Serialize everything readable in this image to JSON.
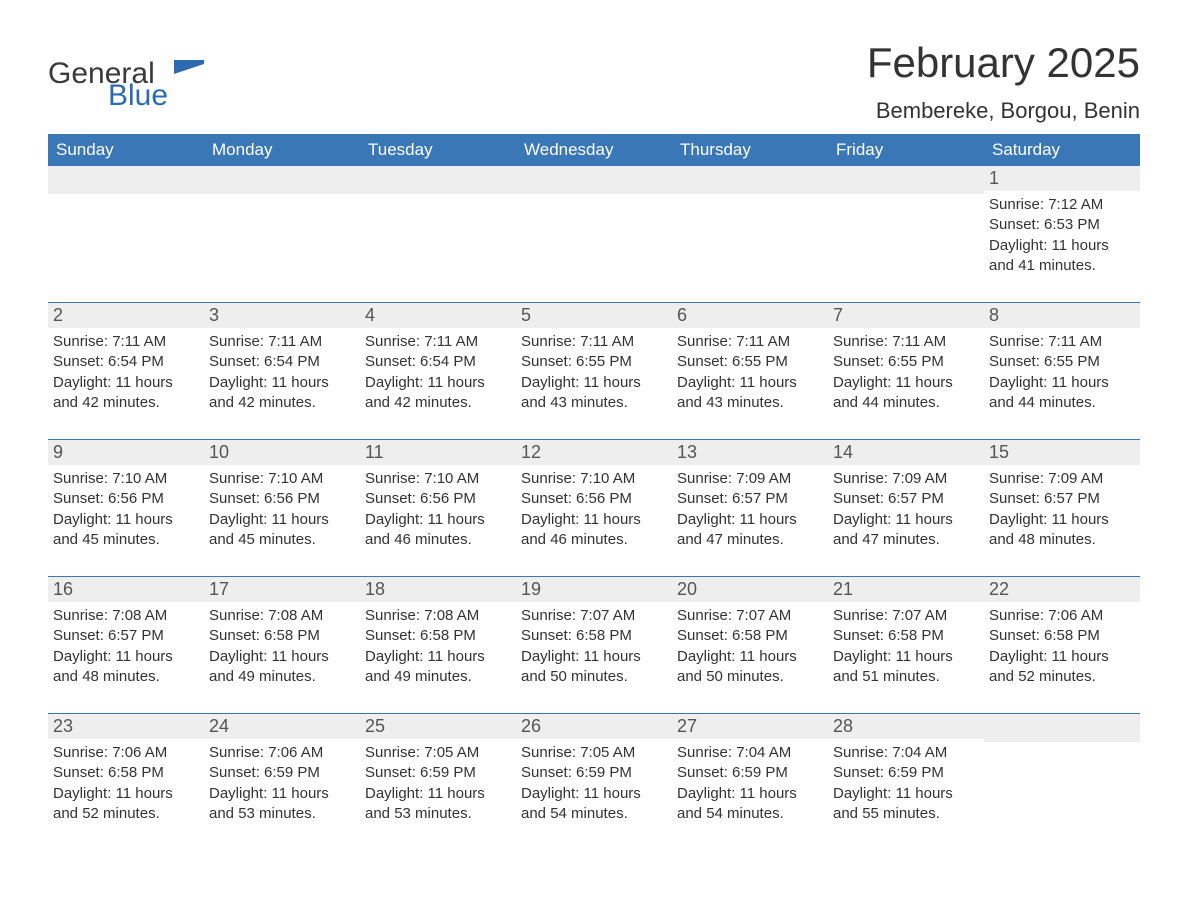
{
  "brand": {
    "general": "General",
    "blue": "Blue",
    "flag_color": "#2d6bb0",
    "text_dark": "#3a3a3a"
  },
  "header": {
    "title": "February 2025",
    "location": "Bembereke, Borgou, Benin"
  },
  "colors": {
    "header_bg": "#3a77b7",
    "header_text": "#ffffff",
    "daynum_bg": "#eeeeee",
    "body_text": "#333333",
    "week_border": "#3a77b7",
    "page_bg": "#ffffff"
  },
  "weekdays": [
    "Sunday",
    "Monday",
    "Tuesday",
    "Wednesday",
    "Thursday",
    "Friday",
    "Saturday"
  ],
  "weeks": [
    [
      {
        "empty": true
      },
      {
        "empty": true
      },
      {
        "empty": true
      },
      {
        "empty": true
      },
      {
        "empty": true
      },
      {
        "empty": true
      },
      {
        "day": "1",
        "sunrise": "Sunrise: 7:12 AM",
        "sunset": "Sunset: 6:53 PM",
        "daylight": "Daylight: 11 hours and 41 minutes."
      }
    ],
    [
      {
        "day": "2",
        "sunrise": "Sunrise: 7:11 AM",
        "sunset": "Sunset: 6:54 PM",
        "daylight": "Daylight: 11 hours and 42 minutes."
      },
      {
        "day": "3",
        "sunrise": "Sunrise: 7:11 AM",
        "sunset": "Sunset: 6:54 PM",
        "daylight": "Daylight: 11 hours and 42 minutes."
      },
      {
        "day": "4",
        "sunrise": "Sunrise: 7:11 AM",
        "sunset": "Sunset: 6:54 PM",
        "daylight": "Daylight: 11 hours and 42 minutes."
      },
      {
        "day": "5",
        "sunrise": "Sunrise: 7:11 AM",
        "sunset": "Sunset: 6:55 PM",
        "daylight": "Daylight: 11 hours and 43 minutes."
      },
      {
        "day": "6",
        "sunrise": "Sunrise: 7:11 AM",
        "sunset": "Sunset: 6:55 PM",
        "daylight": "Daylight: 11 hours and 43 minutes."
      },
      {
        "day": "7",
        "sunrise": "Sunrise: 7:11 AM",
        "sunset": "Sunset: 6:55 PM",
        "daylight": "Daylight: 11 hours and 44 minutes."
      },
      {
        "day": "8",
        "sunrise": "Sunrise: 7:11 AM",
        "sunset": "Sunset: 6:55 PM",
        "daylight": "Daylight: 11 hours and 44 minutes."
      }
    ],
    [
      {
        "day": "9",
        "sunrise": "Sunrise: 7:10 AM",
        "sunset": "Sunset: 6:56 PM",
        "daylight": "Daylight: 11 hours and 45 minutes."
      },
      {
        "day": "10",
        "sunrise": "Sunrise: 7:10 AM",
        "sunset": "Sunset: 6:56 PM",
        "daylight": "Daylight: 11 hours and 45 minutes."
      },
      {
        "day": "11",
        "sunrise": "Sunrise: 7:10 AM",
        "sunset": "Sunset: 6:56 PM",
        "daylight": "Daylight: 11 hours and 46 minutes."
      },
      {
        "day": "12",
        "sunrise": "Sunrise: 7:10 AM",
        "sunset": "Sunset: 6:56 PM",
        "daylight": "Daylight: 11 hours and 46 minutes."
      },
      {
        "day": "13",
        "sunrise": "Sunrise: 7:09 AM",
        "sunset": "Sunset: 6:57 PM",
        "daylight": "Daylight: 11 hours and 47 minutes."
      },
      {
        "day": "14",
        "sunrise": "Sunrise: 7:09 AM",
        "sunset": "Sunset: 6:57 PM",
        "daylight": "Daylight: 11 hours and 47 minutes."
      },
      {
        "day": "15",
        "sunrise": "Sunrise: 7:09 AM",
        "sunset": "Sunset: 6:57 PM",
        "daylight": "Daylight: 11 hours and 48 minutes."
      }
    ],
    [
      {
        "day": "16",
        "sunrise": "Sunrise: 7:08 AM",
        "sunset": "Sunset: 6:57 PM",
        "daylight": "Daylight: 11 hours and 48 minutes."
      },
      {
        "day": "17",
        "sunrise": "Sunrise: 7:08 AM",
        "sunset": "Sunset: 6:58 PM",
        "daylight": "Daylight: 11 hours and 49 minutes."
      },
      {
        "day": "18",
        "sunrise": "Sunrise: 7:08 AM",
        "sunset": "Sunset: 6:58 PM",
        "daylight": "Daylight: 11 hours and 49 minutes."
      },
      {
        "day": "19",
        "sunrise": "Sunrise: 7:07 AM",
        "sunset": "Sunset: 6:58 PM",
        "daylight": "Daylight: 11 hours and 50 minutes."
      },
      {
        "day": "20",
        "sunrise": "Sunrise: 7:07 AM",
        "sunset": "Sunset: 6:58 PM",
        "daylight": "Daylight: 11 hours and 50 minutes."
      },
      {
        "day": "21",
        "sunrise": "Sunrise: 7:07 AM",
        "sunset": "Sunset: 6:58 PM",
        "daylight": "Daylight: 11 hours and 51 minutes."
      },
      {
        "day": "22",
        "sunrise": "Sunrise: 7:06 AM",
        "sunset": "Sunset: 6:58 PM",
        "daylight": "Daylight: 11 hours and 52 minutes."
      }
    ],
    [
      {
        "day": "23",
        "sunrise": "Sunrise: 7:06 AM",
        "sunset": "Sunset: 6:58 PM",
        "daylight": "Daylight: 11 hours and 52 minutes."
      },
      {
        "day": "24",
        "sunrise": "Sunrise: 7:06 AM",
        "sunset": "Sunset: 6:59 PM",
        "daylight": "Daylight: 11 hours and 53 minutes."
      },
      {
        "day": "25",
        "sunrise": "Sunrise: 7:05 AM",
        "sunset": "Sunset: 6:59 PM",
        "daylight": "Daylight: 11 hours and 53 minutes."
      },
      {
        "day": "26",
        "sunrise": "Sunrise: 7:05 AM",
        "sunset": "Sunset: 6:59 PM",
        "daylight": "Daylight: 11 hours and 54 minutes."
      },
      {
        "day": "27",
        "sunrise": "Sunrise: 7:04 AM",
        "sunset": "Sunset: 6:59 PM",
        "daylight": "Daylight: 11 hours and 54 minutes."
      },
      {
        "day": "28",
        "sunrise": "Sunrise: 7:04 AM",
        "sunset": "Sunset: 6:59 PM",
        "daylight": "Daylight: 11 hours and 55 minutes."
      },
      {
        "empty": true
      }
    ]
  ]
}
